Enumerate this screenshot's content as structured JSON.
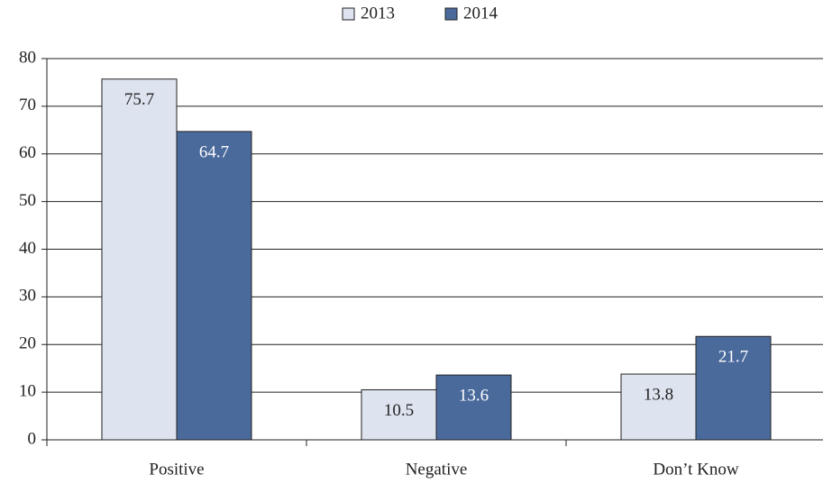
{
  "chart_data": {
    "type": "bar",
    "categories": [
      "Positive",
      "Negative",
      "Don’t Know"
    ],
    "series": [
      {
        "name": "2013",
        "color": "#dde3ef",
        "values": [
          75.7,
          10.5,
          13.8
        ]
      },
      {
        "name": "2014",
        "color": "#4a6a9c",
        "values": [
          64.7,
          13.6,
          21.7
        ]
      }
    ],
    "ylim": [
      0,
      80
    ],
    "yticks": [
      0,
      10,
      20,
      30,
      40,
      50,
      60,
      70,
      80
    ],
    "grid": true,
    "legend": "top"
  }
}
